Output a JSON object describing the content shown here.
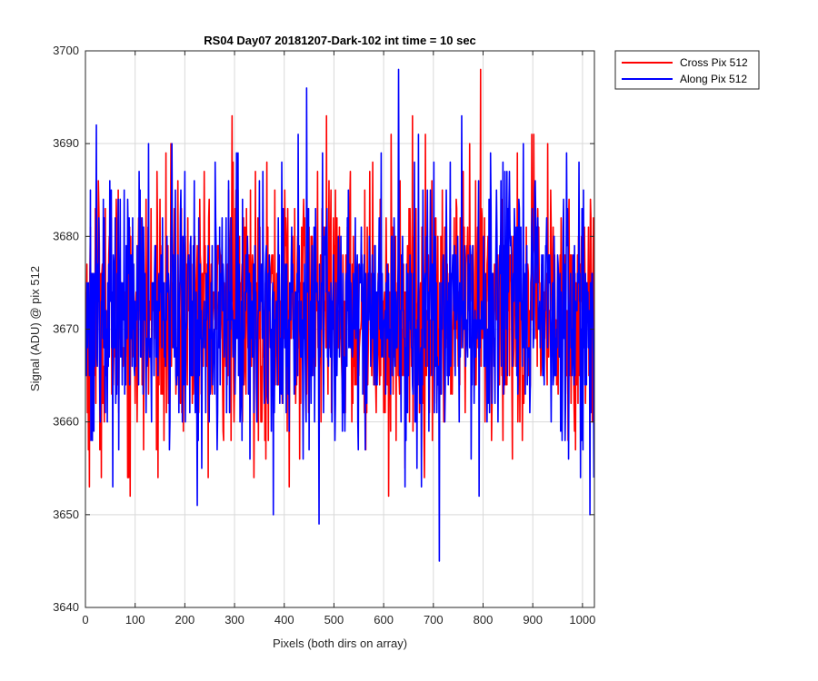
{
  "chart_data": {
    "type": "line",
    "title": "RS04 Day07 20181207-Dark-102 int time = 10 sec",
    "xlabel": "Pixels (both dirs on array)",
    "ylabel": "Signal (ADU) @ pix 512",
    "xlim": [
      0,
      1024
    ],
    "ylim": [
      3640,
      3700
    ],
    "xticks": [
      0,
      100,
      200,
      300,
      400,
      500,
      600,
      700,
      800,
      900,
      1000
    ],
    "yticks": [
      3640,
      3650,
      3660,
      3670,
      3680,
      3690,
      3700
    ],
    "grid": true,
    "legend_position": "outside-top-right",
    "x": "integers 0..1023 (one sample per pixel)",
    "series": [
      {
        "name": "Cross Pix 512",
        "color": "#ff0000",
        "mean": 3672,
        "stdev": 7,
        "min": 3652,
        "max": 3698,
        "notable_points": [
          {
            "x": 8,
            "y": 3653
          },
          {
            "x": 90,
            "y": 3652
          },
          {
            "x": 295,
            "y": 3693
          },
          {
            "x": 410,
            "y": 3653
          },
          {
            "x": 610,
            "y": 3652
          },
          {
            "x": 795,
            "y": 3698
          }
        ]
      },
      {
        "name": "Along Pix 512",
        "color": "#0000ff",
        "mean": 3672,
        "stdev": 7,
        "min": 3645,
        "max": 3698,
        "notable_points": [
          {
            "x": 22,
            "y": 3692
          },
          {
            "x": 225,
            "y": 3651
          },
          {
            "x": 445,
            "y": 3696
          },
          {
            "x": 470,
            "y": 3649
          },
          {
            "x": 630,
            "y": 3698
          },
          {
            "x": 712,
            "y": 3645
          },
          {
            "x": 1015,
            "y": 3650
          }
        ]
      }
    ]
  }
}
